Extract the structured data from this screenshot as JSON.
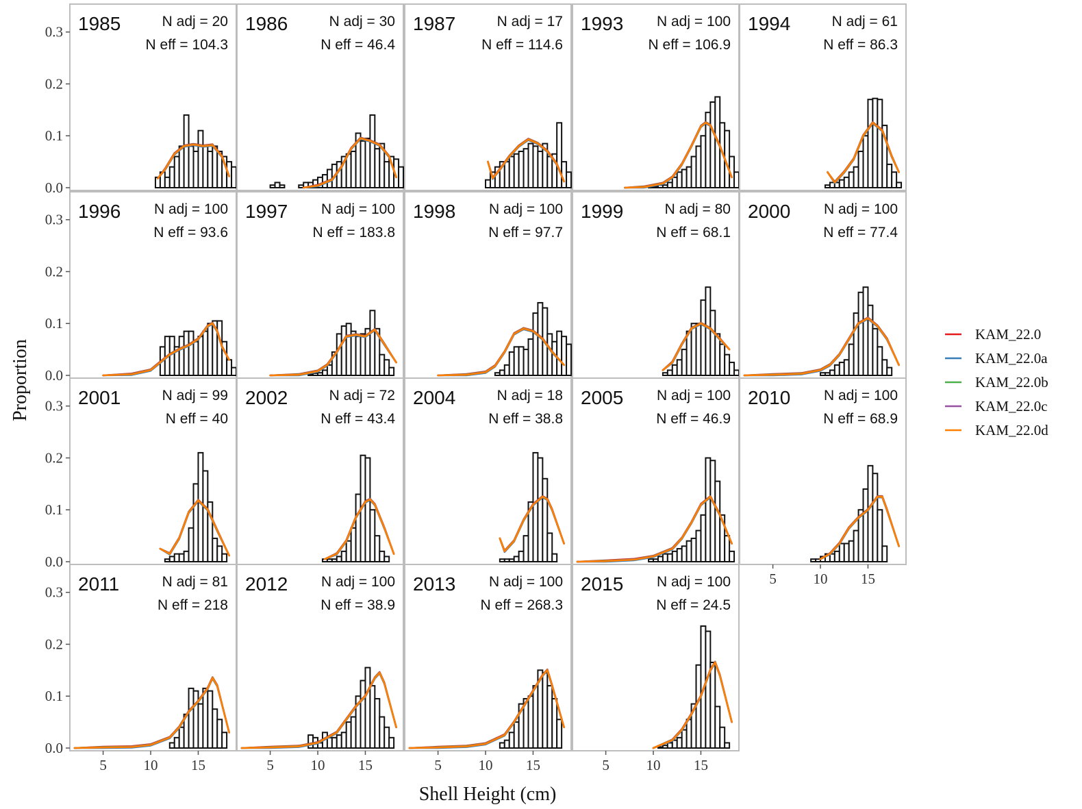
{
  "chart_data": {
    "type": "bar",
    "xlabel": "Shell Height (cm)",
    "ylabel": "Proportion",
    "xlim": [
      1.5,
      19
    ],
    "ylim": [
      0,
      0.33
    ],
    "x_ticks": [
      5,
      10,
      15
    ],
    "y_ticks": [
      0.0,
      0.1,
      0.2,
      0.3
    ],
    "y_tick_labels": [
      "0.0",
      "0.1",
      "0.2",
      "0.3"
    ],
    "bin_width": 0.5,
    "grid": false,
    "legend_position": "right",
    "series": [
      {
        "name": "KAM_22.0",
        "color": "#e41a1c"
      },
      {
        "name": "KAM_22.0a",
        "color": "#377eb8"
      },
      {
        "name": "KAM_22.0b",
        "color": "#4daf4a"
      },
      {
        "name": "KAM_22.0c",
        "color": "#984ea3"
      },
      {
        "name": "KAM_22.0d",
        "color": "#ff7f00"
      }
    ],
    "panels": [
      {
        "year": "1985",
        "n_adj": "N adj = 20",
        "n_eff": "N eff = 104.3",
        "bins_start": 10.75,
        "bars": [
          0.02,
          0.03,
          0.02,
          0.04,
          0.06,
          0.08,
          0.14,
          0.08,
          0.07,
          0.11,
          0.08,
          0.07,
          0.08,
          0.07,
          0.06,
          0.05,
          0.04,
          0.03,
          0.02
        ],
        "fit_x": [
          10.75,
          11.5,
          12.5,
          13.5,
          14.5,
          15.5,
          16.5,
          17.5,
          18.25
        ],
        "fit_y": [
          0.018,
          0.035,
          0.065,
          0.08,
          0.083,
          0.08,
          0.082,
          0.06,
          0.022
        ]
      },
      {
        "year": "1986",
        "n_adj": "N adj = 30",
        "n_eff": "N eff = 46.4",
        "bins_start": 5.25,
        "bars": [
          0.005,
          0.01,
          0.005,
          0,
          0,
          0,
          0.005,
          0.01,
          0.01,
          0.015,
          0.02,
          0.025,
          0.035,
          0.045,
          0.05,
          0.06,
          0.065,
          0.07,
          0.105,
          0.09,
          0.095,
          0.14,
          0.075,
          0.085,
          0.05,
          0.06,
          0.055,
          0.04,
          0.03,
          0.015,
          0.01
        ],
        "fit_x": [
          8.5,
          10,
          11.5,
          12.5,
          13.5,
          14.5,
          15.5,
          16.5,
          17.5,
          18.25
        ],
        "fit_y": [
          0,
          0.004,
          0.015,
          0.04,
          0.075,
          0.095,
          0.09,
          0.082,
          0.06,
          0.02
        ]
      },
      {
        "year": "1987",
        "n_adj": "N adj = 17",
        "n_eff": "N eff = 114.6",
        "bins_start": 10.25,
        "bars": [
          0.015,
          0.03,
          0.04,
          0.05,
          0.05,
          0.06,
          0.065,
          0.07,
          0.075,
          0.085,
          0.08,
          0.07,
          0.085,
          0.06,
          0.065,
          0.125,
          0.05,
          0.03,
          0.02,
          0.01
        ],
        "fit_x": [
          10.25,
          10.75,
          11.5,
          12.5,
          13.5,
          14.5,
          15.5,
          16.5,
          17.5,
          18.25
        ],
        "fit_y": [
          0.05,
          0.018,
          0.035,
          0.06,
          0.08,
          0.093,
          0.085,
          0.07,
          0.045,
          0.012
        ]
      },
      {
        "year": "1993",
        "n_adj": "N adj = 100",
        "n_eff": "N eff = 106.9",
        "bins_start": 9.75,
        "bars": [
          0.002,
          0.002,
          0.005,
          0.005,
          0.01,
          0.02,
          0.03,
          0.035,
          0.04,
          0.06,
          0.08,
          0.1,
          0.145,
          0.165,
          0.175,
          0.125,
          0.11,
          0.06,
          0.03,
          0.01
        ],
        "fit_x": [
          7,
          9,
          11,
          12,
          13,
          14,
          15,
          15.5,
          16,
          17,
          18.25
        ],
        "fit_y": [
          0,
          0.001,
          0.008,
          0.02,
          0.045,
          0.08,
          0.118,
          0.125,
          0.12,
          0.08,
          0.02
        ]
      },
      {
        "year": "1994",
        "n_adj": "N adj = 61",
        "n_eff": "N eff = 86.3",
        "bins_start": 10.75,
        "bars": [
          0.005,
          0.01,
          0.01,
          0.015,
          0.02,
          0.03,
          0.04,
          0.07,
          0.1,
          0.17,
          0.172,
          0.17,
          0.12,
          0.045,
          0.03,
          0.01
        ],
        "fit_x": [
          10.75,
          11.5,
          12.5,
          13.5,
          14.5,
          15.5,
          16.5,
          17.5,
          18.25
        ],
        "fit_y": [
          0.03,
          0.01,
          0.03,
          0.055,
          0.1,
          0.125,
          0.11,
          0.06,
          0.03
        ]
      },
      {
        "year": "1996",
        "n_adj": "N adj = 100",
        "n_eff": "N eff = 93.6",
        "bins_start": 11.25,
        "bars": [
          0.055,
          0.075,
          0.075,
          0.055,
          0.075,
          0.085,
          0.085,
          0.065,
          0.075,
          0.085,
          0.1,
          0.105,
          0.105,
          0.065,
          0.03,
          0.015,
          0.005
        ],
        "fit_x": [
          5,
          8,
          10,
          11,
          12,
          13,
          14,
          15,
          16,
          16.5,
          17,
          17.5,
          18.25
        ],
        "fit_y": [
          0,
          0.002,
          0.01,
          0.025,
          0.04,
          0.05,
          0.058,
          0.07,
          0.095,
          0.1,
          0.085,
          0.055,
          0.03
        ]
      },
      {
        "year": "1997",
        "n_adj": "N adj = 100",
        "n_eff": "N eff = 183.8",
        "bins_start": 9.25,
        "bars": [
          0.002,
          0.004,
          0.005,
          0.01,
          0.02,
          0.045,
          0.08,
          0.095,
          0.1,
          0.085,
          0.075,
          0.08,
          0.09,
          0.125,
          0.09,
          0.04,
          0.03,
          0.015
        ],
        "fit_x": [
          5,
          8,
          10,
          11,
          12,
          13,
          14,
          15,
          16,
          17,
          18.25
        ],
        "fit_y": [
          0,
          0.001,
          0.008,
          0.02,
          0.045,
          0.075,
          0.078,
          0.075,
          0.088,
          0.06,
          0.025
        ]
      },
      {
        "year": "1998",
        "n_adj": "N adj = 100",
        "n_eff": "N eff = 97.7",
        "bins_start": 11.25,
        "bars": [
          0.005,
          0.01,
          0.02,
          0.045,
          0.055,
          0.055,
          0.05,
          0.07,
          0.12,
          0.14,
          0.13,
          0.08,
          0.065,
          0.085,
          0.075,
          0.06,
          0.04,
          0.015
        ],
        "fit_x": [
          5,
          8,
          10,
          11,
          12,
          13,
          14,
          15,
          16,
          17,
          18.25
        ],
        "fit_y": [
          0,
          0.001,
          0.006,
          0.018,
          0.045,
          0.08,
          0.09,
          0.085,
          0.07,
          0.045,
          0.02
        ]
      },
      {
        "year": "1999",
        "n_adj": "N adj = 80",
        "n_eff": "N eff = 68.1",
        "bins_start": 11.25,
        "bars": [
          0.005,
          0.01,
          0.02,
          0.03,
          0.05,
          0.085,
          0.1,
          0.1,
          0.145,
          0.17,
          0.125,
          0.08,
          0.06,
          0.04,
          0.025,
          0.01
        ],
        "fit_x": [
          11,
          12,
          13,
          14,
          15,
          16,
          17,
          18
        ],
        "fit_y": [
          0.01,
          0.025,
          0.06,
          0.09,
          0.1,
          0.09,
          0.07,
          0.05
        ]
      },
      {
        "year": "2000",
        "n_adj": "N adj = 100",
        "n_eff": "N eff = 77.4",
        "bins_start": 10.25,
        "bars": [
          0.005,
          0.005,
          0.01,
          0.02,
          0.025,
          0.03,
          0.06,
          0.12,
          0.16,
          0.17,
          0.135,
          0.09,
          0.055,
          0.03,
          0.015
        ],
        "fit_x": [
          2,
          5,
          8,
          10,
          11,
          12,
          13,
          14,
          15,
          16,
          17,
          18.25
        ],
        "fit_y": [
          0,
          0.001,
          0.003,
          0.01,
          0.02,
          0.04,
          0.07,
          0.1,
          0.11,
          0.095,
          0.07,
          0.02
        ]
      },
      {
        "year": "2001",
        "n_adj": "N adj = 99",
        "n_eff": "N eff = 40",
        "bins_start": 11.75,
        "bars": [
          0.005,
          0.01,
          0.015,
          0.015,
          0.02,
          0.065,
          0.15,
          0.21,
          0.175,
          0.115,
          0.045,
          0.03,
          0.015
        ],
        "fit_x": [
          11,
          12,
          13,
          14,
          15,
          16,
          17,
          18.25
        ],
        "fit_y": [
          0.025,
          0.015,
          0.045,
          0.095,
          0.118,
          0.1,
          0.06,
          0.012
        ]
      },
      {
        "year": "2002",
        "n_adj": "N adj = 72",
        "n_eff": "N eff = 43.4",
        "bins_start": 10.75,
        "bars": [
          0.005,
          0.005,
          0.005,
          0.01,
          0.02,
          0.04,
          0.065,
          0.13,
          0.205,
          0.2,
          0.1,
          0.05,
          0.02,
          0.01
        ],
        "fit_x": [
          10.75,
          12,
          13,
          14,
          15,
          15.5,
          16,
          17,
          18
        ],
        "fit_y": [
          0.005,
          0.015,
          0.04,
          0.085,
          0.115,
          0.12,
          0.11,
          0.065,
          0.015
        ]
      },
      {
        "year": "2004",
        "n_adj": "N adj = 18",
        "n_eff": "N eff = 38.8",
        "bins_start": 11.75,
        "bars": [
          0.005,
          0.005,
          0.005,
          0.01,
          0.02,
          0.05,
          0.115,
          0.21,
          0.2,
          0.16,
          0.055,
          0.015
        ],
        "fit_x": [
          11.5,
          12,
          13,
          14,
          15,
          16,
          16.5,
          17,
          18.25
        ],
        "fit_y": [
          0.045,
          0.02,
          0.04,
          0.08,
          0.11,
          0.125,
          0.12,
          0.1,
          0.035
        ]
      },
      {
        "year": "2005",
        "n_adj": "N adj = 100",
        "n_eff": "N eff = 46.9",
        "bins_start": 9.75,
        "bars": [
          0.005,
          0.005,
          0.01,
          0.015,
          0.015,
          0.02,
          0.025,
          0.03,
          0.04,
          0.045,
          0.06,
          0.09,
          0.2,
          0.195,
          0.155,
          0.09,
          0.05,
          0.02
        ],
        "fit_x": [
          2,
          5,
          8,
          10,
          12,
          13,
          14,
          15,
          16,
          17,
          18.25
        ],
        "fit_y": [
          0,
          0.001,
          0.004,
          0.01,
          0.025,
          0.045,
          0.075,
          0.11,
          0.125,
          0.09,
          0.035
        ]
      },
      {
        "year": "2010",
        "n_adj": "N adj = 100",
        "n_eff": "N eff = 68.9",
        "bins_start": 9.25,
        "bars": [
          0.005,
          0.005,
          0.01,
          0.015,
          0.015,
          0.02,
          0.035,
          0.035,
          0.04,
          0.06,
          0.1,
          0.14,
          0.185,
          0.17,
          0.1,
          0.03
        ],
        "fit_x": [
          10,
          11,
          12,
          13,
          14,
          15,
          16,
          16.5,
          17,
          18.25
        ],
        "fit_y": [
          0.005,
          0.015,
          0.035,
          0.065,
          0.085,
          0.1,
          0.125,
          0.125,
          0.1,
          0.03
        ]
      },
      {
        "year": "2011",
        "n_adj": "N adj = 81",
        "n_eff": "N eff = 218",
        "bins_start": 12.25,
        "bars": [
          0.01,
          0.02,
          0.04,
          0.065,
          0.115,
          0.11,
          0.085,
          0.115,
          0.11,
          0.075,
          0.055,
          0.03
        ],
        "fit_x": [
          2,
          5,
          8,
          10,
          12,
          13,
          14,
          15,
          16,
          16.5,
          17,
          18.25
        ],
        "fit_y": [
          0,
          0.001,
          0.002,
          0.006,
          0.02,
          0.04,
          0.07,
          0.09,
          0.115,
          0.135,
          0.12,
          0.03
        ]
      },
      {
        "year": "2012",
        "n_adj": "N adj = 100",
        "n_eff": "N eff = 38.9",
        "bins_start": 9.25,
        "bars": [
          0.025,
          0.02,
          0.01,
          0.03,
          0.02,
          0.02,
          0.025,
          0.03,
          0.05,
          0.06,
          0.1,
          0.13,
          0.155,
          0.12,
          0.095,
          0.06,
          0.04,
          0.02
        ],
        "fit_x": [
          2,
          5,
          8,
          10,
          12,
          13,
          14,
          15,
          16,
          16.5,
          17,
          18.25
        ],
        "fit_y": [
          0,
          0.001,
          0.003,
          0.01,
          0.03,
          0.055,
          0.08,
          0.1,
          0.135,
          0.145,
          0.125,
          0.04
        ]
      },
      {
        "year": "2013",
        "n_adj": "N adj = 100",
        "n_eff": "N eff = 268.3",
        "bins_start": 11.75,
        "bars": [
          0.01,
          0.015,
          0.03,
          0.05,
          0.085,
          0.095,
          0.1,
          0.12,
          0.15,
          0.145,
          0.12,
          0.095,
          0.055
        ],
        "fit_x": [
          2,
          5,
          8,
          10,
          12,
          13,
          14,
          15,
          16,
          16.5,
          17,
          18.25
        ],
        "fit_y": [
          0,
          0.001,
          0.003,
          0.008,
          0.025,
          0.05,
          0.08,
          0.11,
          0.14,
          0.15,
          0.12,
          0.04
        ]
      },
      {
        "year": "2015",
        "n_adj": "N adj = 100",
        "n_eff": "N eff = 24.5",
        "bins_start": 10.75,
        "bars": [
          0.002,
          0.005,
          0.01,
          0.015,
          0.02,
          0.035,
          0.055,
          0.085,
          0.16,
          0.235,
          0.225,
          0.165,
          0.08,
          0.04,
          0.01
        ],
        "fit_x": [
          10,
          12,
          13,
          14,
          15,
          16,
          16.5,
          17,
          18.25
        ],
        "fit_y": [
          0,
          0.015,
          0.035,
          0.065,
          0.1,
          0.15,
          0.165,
          0.14,
          0.05
        ]
      }
    ]
  }
}
